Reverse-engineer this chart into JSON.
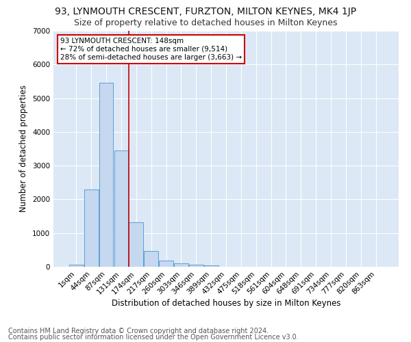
{
  "title1": "93, LYNMOUTH CRESCENT, FURZTON, MILTON KEYNES, MK4 1JP",
  "title2": "Size of property relative to detached houses in Milton Keynes",
  "xlabel": "Distribution of detached houses by size in Milton Keynes",
  "ylabel": "Number of detached properties",
  "footnote1": "Contains HM Land Registry data © Crown copyright and database right 2024.",
  "footnote2": "Contains public sector information licensed under the Open Government Licence v3.0.",
  "bar_labels": [
    "1sqm",
    "44sqm",
    "87sqm",
    "131sqm",
    "174sqm",
    "217sqm",
    "260sqm",
    "303sqm",
    "346sqm",
    "389sqm",
    "432sqm",
    "475sqm",
    "518sqm",
    "561sqm",
    "604sqm",
    "648sqm",
    "691sqm",
    "734sqm",
    "777sqm",
    "820sqm",
    "863sqm"
  ],
  "bar_values": [
    60,
    2300,
    5450,
    3450,
    1320,
    460,
    185,
    110,
    70,
    40,
    0,
    0,
    0,
    0,
    0,
    0,
    0,
    0,
    0,
    0,
    0
  ],
  "bar_color": "#c5d8f0",
  "bar_edge_color": "#5a9fd4",
  "vline_x": 3.5,
  "vline_color": "#cc0000",
  "annotation_text": "93 LYNMOUTH CRESCENT: 148sqm\n← 72% of detached houses are smaller (9,514)\n28% of semi-detached houses are larger (3,663) →",
  "annotation_box_color": "#ffffff",
  "annotation_box_edge": "#cc0000",
  "ylim": [
    0,
    7000
  ],
  "yticks": [
    0,
    1000,
    2000,
    3000,
    4000,
    5000,
    6000,
    7000
  ],
  "plot_bg_color": "#dce8f5",
  "fig_bg_color": "#ffffff",
  "grid_color": "#ffffff",
  "title1_fontsize": 10,
  "title2_fontsize": 9,
  "axis_label_fontsize": 8.5,
  "tick_fontsize": 7.5,
  "annotation_fontsize": 7.5,
  "footnote_fontsize": 7
}
